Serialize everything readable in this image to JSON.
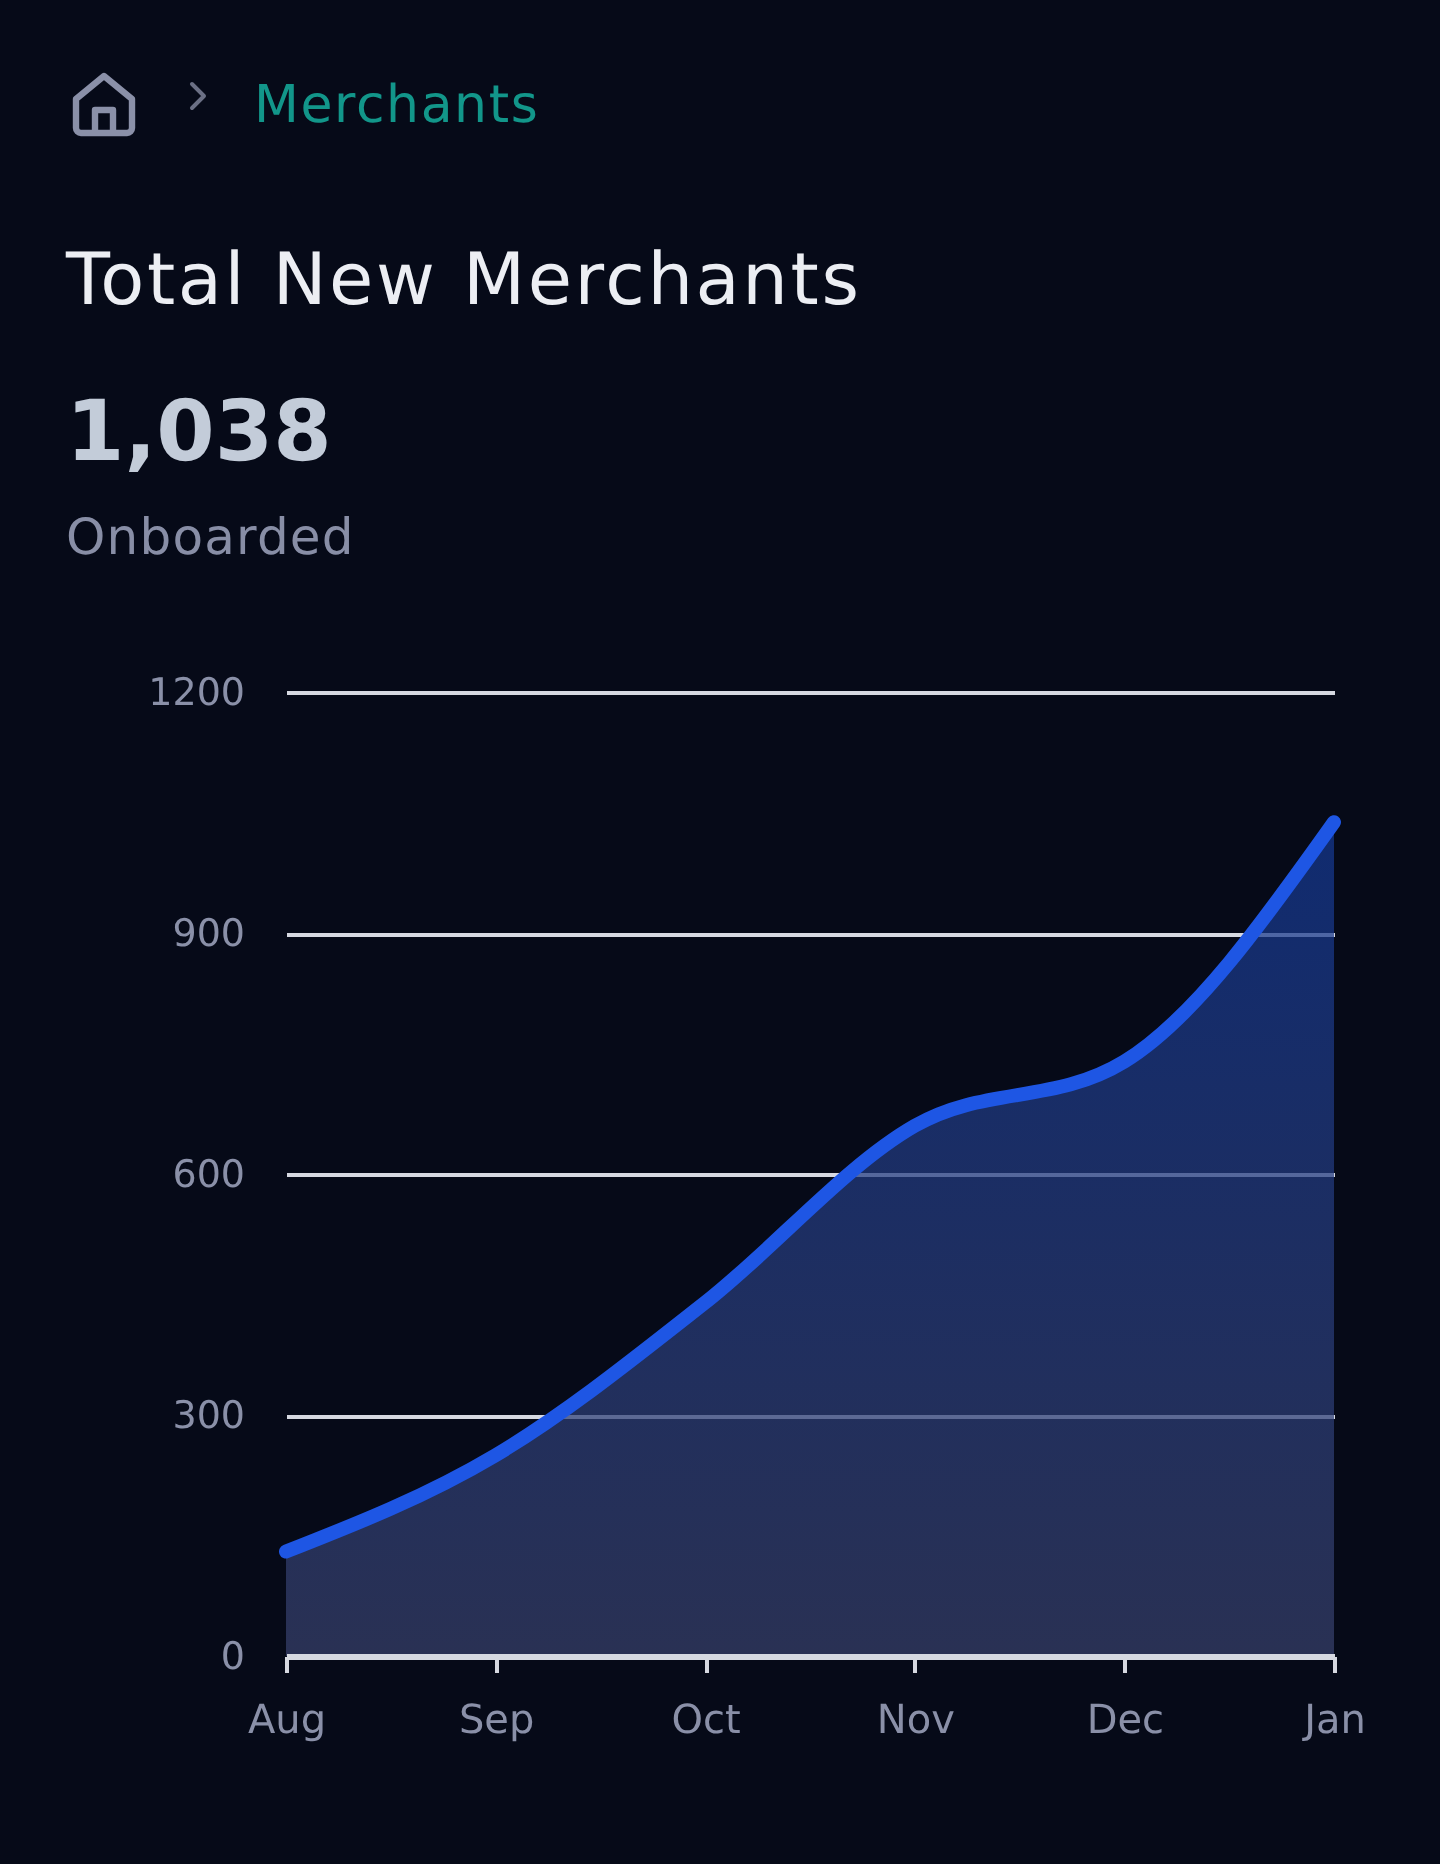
{
  "chart_data": {
    "type": "area",
    "title": "Total New Merchants",
    "annotations": [
      "Merchants",
      "1,038",
      "Onboarded"
    ],
    "categories": [
      "Aug",
      "Sep",
      "Oct",
      "Nov",
      "Dec",
      "Jan"
    ],
    "series": [
      {
        "color": "#1e56e4",
        "values": [
          130,
          250,
          440,
          660,
          740,
          1038
        ]
      }
    ],
    "ylim": [
      0,
      1200
    ],
    "yticks": [
      0,
      300,
      600,
      900,
      1200
    ],
    "grid": "y",
    "line_style": "solid"
  }
}
